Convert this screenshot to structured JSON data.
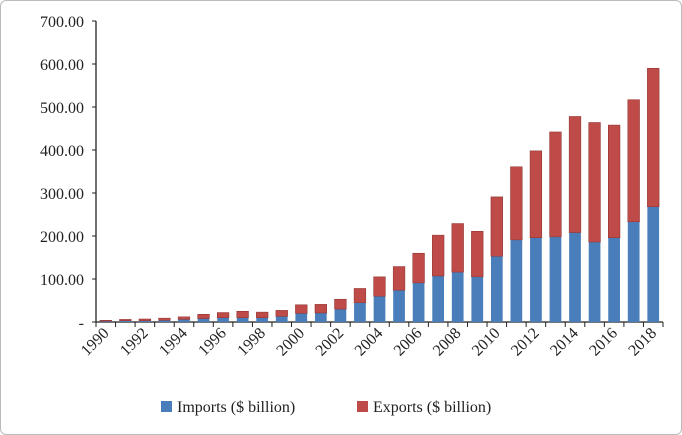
{
  "chart_data": {
    "type": "bar",
    "stacked": true,
    "categories": [
      "1990",
      "1991",
      "1992",
      "1993",
      "1994",
      "1995",
      "1996",
      "1997",
      "1998",
      "1999",
      "2000",
      "2001",
      "2002",
      "2003",
      "2004",
      "2005",
      "2006",
      "2007",
      "2008",
      "2009",
      "2010",
      "2011",
      "2012",
      "2013",
      "2014",
      "2015",
      "2016",
      "2017",
      "2018"
    ],
    "x_tick_labels": [
      "1990",
      "1992",
      "1994",
      "1996",
      "1998",
      "2000",
      "2002",
      "2004",
      "2006",
      "2008",
      "2010",
      "2012",
      "2014",
      "2016",
      "2018"
    ],
    "y_tick_labels": [
      "-",
      "100.00",
      "200.00",
      "300.00",
      "400.00",
      "500.00",
      "600.00",
      "700.00"
    ],
    "ylim": [
      0,
      700
    ],
    "grid": false,
    "legend_position": "bottom",
    "series": [
      {
        "name": "Imports ($ billion)",
        "color": "#4a7ebb",
        "values": [
          2,
          3,
          3,
          4,
          6,
          8,
          10,
          10,
          10,
          13,
          20,
          21,
          30,
          45,
          60,
          74,
          91,
          107,
          116,
          105,
          153,
          191,
          196,
          198,
          208,
          186,
          196,
          233,
          268
        ]
      },
      {
        "name": "Exports ($ billion)",
        "color": "#be4b48",
        "values": [
          2,
          3,
          4,
          5,
          6,
          10,
          12,
          15,
          13,
          14,
          20,
          20,
          23,
          33,
          45,
          55,
          69,
          95,
          113,
          106,
          138,
          170,
          202,
          244,
          270,
          278,
          262,
          284,
          322
        ]
      }
    ]
  }
}
